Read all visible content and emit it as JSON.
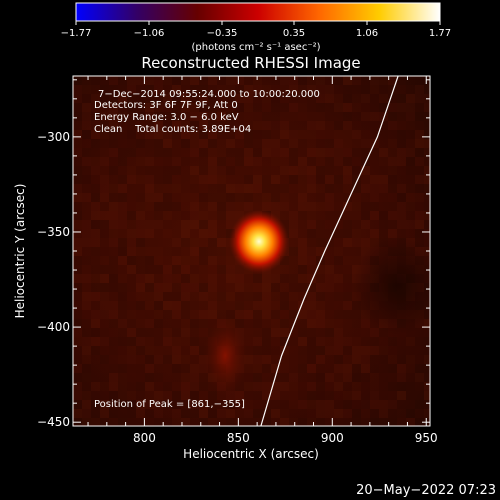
{
  "chart_data": {
    "type": "heatmap",
    "title": "Reconstructed RHESSI Image",
    "xlabel": "Heliocentric X (arcsec)",
    "ylabel": "Heliocentric Y (arcsec)",
    "xlim": [
      762,
      952
    ],
    "ylim": [
      -452,
      -268
    ],
    "x_ticks": [
      800,
      850,
      900,
      950
    ],
    "x_tick_labels": [
      "800",
      "850",
      "900",
      "950"
    ],
    "y_ticks": [
      -300,
      -350,
      -400,
      -450
    ],
    "y_tick_labels": [
      "−300",
      "−350",
      "−400",
      "−450"
    ],
    "colorbar": {
      "min": -1.77,
      "max": 1.77,
      "ticks": [
        -1.77,
        -1.06,
        -0.35,
        0.35,
        1.06,
        1.77
      ],
      "tick_labels": [
        "−1.77",
        "−1.06",
        "−0.35",
        "0.35",
        "1.06",
        "1.77"
      ],
      "unit_label": "(photons cm⁻² s⁻¹ asec⁻²)",
      "colors": [
        "#0000ff",
        "#330066",
        "#660000",
        "#cc0000",
        "#ff6600",
        "#ffcc00",
        "#ffffff"
      ]
    },
    "peak": {
      "x": 861,
      "y": -355,
      "value": 1.77
    },
    "secondary_source": {
      "x": 843,
      "y": -415,
      "value": 0.45
    },
    "background_level": 0.35,
    "limb_curve": [
      {
        "x": 935,
        "y": -268
      },
      {
        "x": 924,
        "y": -300
      },
      {
        "x": 910,
        "y": -330
      },
      {
        "x": 896,
        "y": -360
      },
      {
        "x": 885,
        "y": -385
      },
      {
        "x": 873,
        "y": -415
      },
      {
        "x": 862,
        "y": -452
      }
    ],
    "annotations": {
      "time": "7−Dec−2014 09:55:24.000 to 10:00:20.000",
      "detectors": "Detectors: 3F 6F 7F 9F, Att 0",
      "energy": "Energy Range: 3.0 − 6.0 keV",
      "clean": "Clean    Total counts: 3.89E+04",
      "peak_label": "Position of Peak = [861,−355]"
    }
  },
  "timestamp": "20−May−2022 07:23"
}
